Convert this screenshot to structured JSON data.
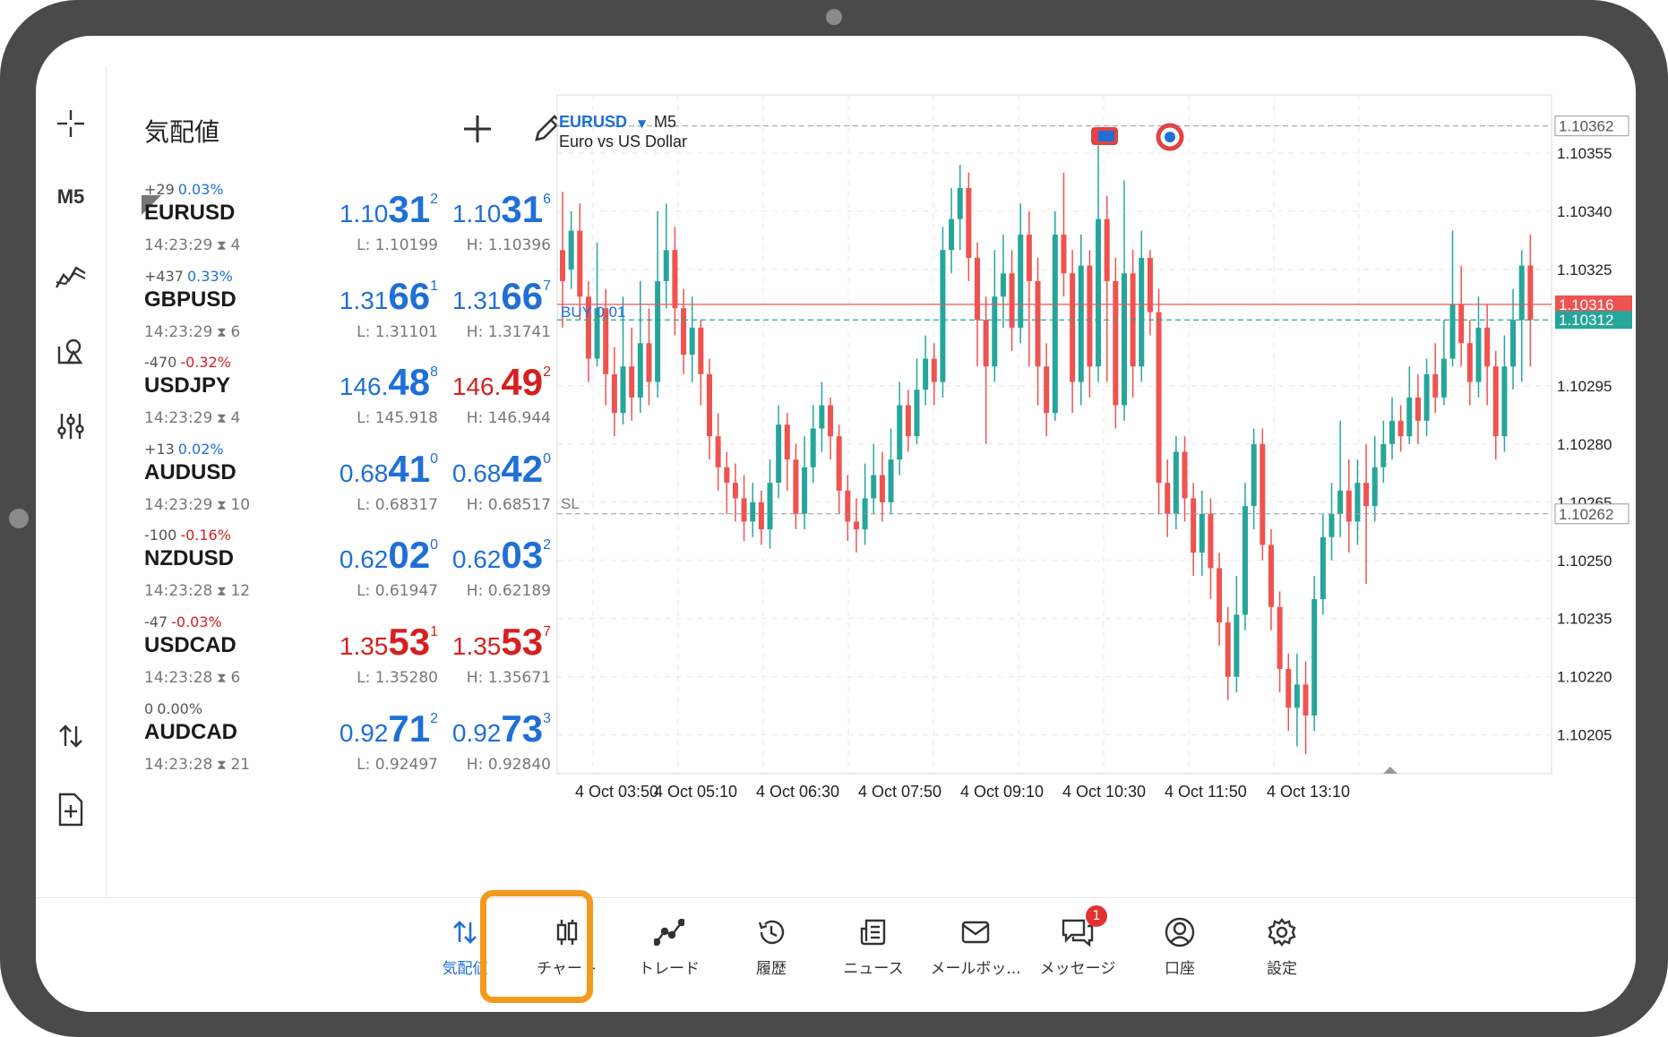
{
  "left_toolbar": {
    "timeframe": "M5",
    "items": [
      "crosshair-icon",
      "timeframe",
      "indicators-icon",
      "objects-icon",
      "settings-sliders-icon",
      "trade-arrows-icon",
      "new-order-icon"
    ]
  },
  "quotes": {
    "title": "気配値",
    "rows": [
      {
        "points": "+29",
        "pct": "0.03%",
        "pct_color": "blue",
        "symbol": "EURUSD",
        "time": "14:23:29",
        "spread": "4",
        "bid_sm": "1.10",
        "bid_big": "31",
        "bid_sup": "2",
        "bid_color": "blue",
        "ask_sm": "1.10",
        "ask_big": "31",
        "ask_sup": "6",
        "ask_color": "blue",
        "low": "L: 1.10199",
        "high": "H: 1.10396"
      },
      {
        "points": "+437",
        "pct": "0.33%",
        "pct_color": "blue",
        "symbol": "GBPUSD",
        "time": "14:23:29",
        "spread": "6",
        "bid_sm": "1.31",
        "bid_big": "66",
        "bid_sup": "1",
        "bid_color": "blue",
        "ask_sm": "1.31",
        "ask_big": "66",
        "ask_sup": "7",
        "ask_color": "blue",
        "low": "L: 1.31101",
        "high": "H: 1.31741"
      },
      {
        "points": "-470",
        "pct": "-0.32%",
        "pct_color": "red",
        "symbol": "USDJPY",
        "time": "14:23:29",
        "spread": "4",
        "bid_sm": "146.",
        "bid_big": "48",
        "bid_sup": "8",
        "bid_color": "blue",
        "ask_sm": "146.",
        "ask_big": "49",
        "ask_sup": "2",
        "ask_color": "red",
        "low": "L: 145.918",
        "high": "H: 146.944"
      },
      {
        "points": "+13",
        "pct": "0.02%",
        "pct_color": "blue",
        "symbol": "AUDUSD",
        "time": "14:23:29",
        "spread": "10",
        "bid_sm": "0.68",
        "bid_big": "41",
        "bid_sup": "0",
        "bid_color": "blue",
        "ask_sm": "0.68",
        "ask_big": "42",
        "ask_sup": "0",
        "ask_color": "blue",
        "low": "L: 0.68317",
        "high": "H: 0.68517"
      },
      {
        "points": "-100",
        "pct": "-0.16%",
        "pct_color": "red",
        "symbol": "NZDUSD",
        "time": "14:23:28",
        "spread": "12",
        "bid_sm": "0.62",
        "bid_big": "02",
        "bid_sup": "0",
        "bid_color": "blue",
        "ask_sm": "0.62",
        "ask_big": "03",
        "ask_sup": "2",
        "ask_color": "blue",
        "low": "L: 0.61947",
        "high": "H: 0.62189"
      },
      {
        "points": "-47",
        "pct": "-0.03%",
        "pct_color": "red",
        "symbol": "USDCAD",
        "time": "14:23:28",
        "spread": "6",
        "bid_sm": "1.35",
        "bid_big": "53",
        "bid_sup": "1",
        "bid_color": "red",
        "ask_sm": "1.35",
        "ask_big": "53",
        "ask_sup": "7",
        "ask_color": "red",
        "low": "L: 1.35280",
        "high": "H: 1.35671"
      },
      {
        "points": "0",
        "pct": "0.00%",
        "pct_color": "gray",
        "symbol": "AUDCAD",
        "time": "14:23:28",
        "spread": "21",
        "bid_sm": "0.92",
        "bid_big": "71",
        "bid_sup": "2",
        "bid_color": "blue",
        "ask_sm": "0.92",
        "ask_big": "73",
        "ask_sup": "3",
        "ask_color": "blue",
        "low": "L: 0.92497",
        "high": "H: 0.92840"
      }
    ]
  },
  "chart": {
    "symbol": "EURUSD",
    "timeframe": "M5",
    "description": "Euro vs US Dollar",
    "buy_label": "BUY 0.01",
    "sl_label": "SL",
    "ask_line_label": "1.10316",
    "bid_line_label": "1.10312",
    "top_dashed_label": "1.10362",
    "sl_line_label": "1.10262",
    "y_ticks": [
      "1.10355",
      "1.10340",
      "1.10325",
      "1.10295",
      "1.10280",
      "1.10265",
      "1.10250",
      "1.10235",
      "1.10220",
      "1.10205"
    ],
    "x_ticks": [
      "4 Oct 03:50",
      "4 Oct 05:10",
      "4 Oct 06:30",
      "4 Oct 07:50",
      "4 Oct 09:10",
      "4 Oct 10:30",
      "4 Oct 11:50",
      "4 Oct 13:10"
    ],
    "colors": {
      "up": "#26a69a",
      "down": "#ef5350",
      "ask_line": "#ef5350",
      "bid_line": "#26a69a"
    }
  },
  "chart_data": {
    "type": "candlestick",
    "ylim": [
      1.10195,
      1.1037
    ],
    "candles": [
      [
        1.1033,
        1.10322,
        1.10345,
        1.1031
      ],
      [
        1.10325,
        1.10335,
        1.1034,
        1.1032
      ],
      [
        1.10335,
        1.10318,
        1.10342,
        1.10312
      ],
      [
        1.10318,
        1.10302,
        1.10322,
        1.10296
      ],
      [
        1.10302,
        1.10315,
        1.10332,
        1.103
      ],
      [
        1.10315,
        1.10298,
        1.1032,
        1.1029
      ],
      [
        1.10298,
        1.10288,
        1.10305,
        1.10282
      ],
      [
        1.10288,
        1.103,
        1.10318,
        1.10285
      ],
      [
        1.103,
        1.10292,
        1.1031,
        1.10286
      ],
      [
        1.10292,
        1.10306,
        1.10322,
        1.10288
      ],
      [
        1.10306,
        1.10296,
        1.10315,
        1.1029
      ],
      [
        1.10296,
        1.10322,
        1.1034,
        1.10292
      ],
      [
        1.10322,
        1.1033,
        1.10342,
        1.10315
      ],
      [
        1.1033,
        1.10315,
        1.10336,
        1.10308
      ],
      [
        1.10315,
        1.10303,
        1.1032,
        1.10298
      ],
      [
        1.10303,
        1.1031,
        1.10318,
        1.10296
      ],
      [
        1.1031,
        1.10298,
        1.10312,
        1.1029
      ],
      [
        1.10298,
        1.10282,
        1.10302,
        1.10276
      ],
      [
        1.10282,
        1.10274,
        1.10288,
        1.10268
      ],
      [
        1.10274,
        1.1027,
        1.10278,
        1.10262
      ],
      [
        1.1027,
        1.10266,
        1.10275,
        1.1026
      ],
      [
        1.10266,
        1.1026,
        1.10272,
        1.10255
      ],
      [
        1.1026,
        1.10265,
        1.1027,
        1.10256
      ],
      [
        1.10265,
        1.10258,
        1.10268,
        1.10254
      ],
      [
        1.10258,
        1.1027,
        1.10276,
        1.10253
      ],
      [
        1.1027,
        1.10285,
        1.1029,
        1.10266
      ],
      [
        1.10285,
        1.10276,
        1.10288,
        1.10268
      ],
      [
        1.10276,
        1.10262,
        1.1028,
        1.10258
      ],
      [
        1.10262,
        1.10274,
        1.10282,
        1.10258
      ],
      [
        1.10274,
        1.10284,
        1.1029,
        1.1027
      ],
      [
        1.10284,
        1.1029,
        1.10296,
        1.10278
      ],
      [
        1.1029,
        1.10282,
        1.10292,
        1.10276
      ],
      [
        1.10282,
        1.10268,
        1.10285,
        1.10262
      ],
      [
        1.10268,
        1.1026,
        1.10272,
        1.10255
      ],
      [
        1.1026,
        1.10258,
        1.10266,
        1.10252
      ],
      [
        1.10258,
        1.10266,
        1.10275,
        1.10254
      ],
      [
        1.10266,
        1.10272,
        1.1028,
        1.10262
      ],
      [
        1.10272,
        1.10265,
        1.10278,
        1.1026
      ],
      [
        1.10265,
        1.10276,
        1.10284,
        1.10262
      ],
      [
        1.10276,
        1.1029,
        1.10296,
        1.10272
      ],
      [
        1.1029,
        1.10282,
        1.10294,
        1.10278
      ],
      [
        1.10282,
        1.10294,
        1.10302,
        1.1028
      ],
      [
        1.10294,
        1.10302,
        1.10308,
        1.1029
      ],
      [
        1.10302,
        1.10296,
        1.10306,
        1.1029
      ],
      [
        1.10296,
        1.1033,
        1.10336,
        1.10292
      ],
      [
        1.1033,
        1.10338,
        1.10346,
        1.10324
      ],
      [
        1.10338,
        1.10346,
        1.10352,
        1.1033
      ],
      [
        1.10346,
        1.10328,
        1.1035,
        1.10322
      ],
      [
        1.10328,
        1.10312,
        1.10332,
        1.103
      ],
      [
        1.10312,
        1.103,
        1.10318,
        1.1028
      ],
      [
        1.103,
        1.10318,
        1.1033,
        1.10296
      ],
      [
        1.10318,
        1.10324,
        1.10334,
        1.1031
      ],
      [
        1.10324,
        1.1031,
        1.1033,
        1.10304
      ],
      [
        1.1031,
        1.10334,
        1.10342,
        1.10306
      ],
      [
        1.10334,
        1.10322,
        1.1034,
        1.103
      ],
      [
        1.10322,
        1.103,
        1.10328,
        1.1029
      ],
      [
        1.103,
        1.10288,
        1.10306,
        1.10282
      ],
      [
        1.10288,
        1.10334,
        1.1034,
        1.10286
      ],
      [
        1.10334,
        1.10324,
        1.1035,
        1.10318
      ],
      [
        1.10324,
        1.10296,
        1.1033,
        1.10288
      ],
      [
        1.10296,
        1.10326,
        1.10334,
        1.1029
      ],
      [
        1.10326,
        1.103,
        1.1033,
        1.10292
      ],
      [
        1.103,
        1.10338,
        1.10357,
        1.10296
      ],
      [
        1.10338,
        1.10322,
        1.10344,
        1.10296
      ],
      [
        1.10322,
        1.1029,
        1.10328,
        1.10284
      ],
      [
        1.1029,
        1.10324,
        1.10348,
        1.10286
      ],
      [
        1.10324,
        1.103,
        1.1033,
        1.10292
      ],
      [
        1.103,
        1.10328,
        1.10335,
        1.10296
      ],
      [
        1.10328,
        1.10314,
        1.1033,
        1.10308
      ],
      [
        1.10314,
        1.1027,
        1.1032,
        1.10262
      ],
      [
        1.1027,
        1.10262,
        1.10276,
        1.10256
      ],
      [
        1.10262,
        1.10278,
        1.10282,
        1.10258
      ],
      [
        1.10278,
        1.10266,
        1.10282,
        1.1026
      ],
      [
        1.10266,
        1.10252,
        1.1027,
        1.10246
      ],
      [
        1.10252,
        1.10262,
        1.10268,
        1.10246
      ],
      [
        1.10262,
        1.10248,
        1.10266,
        1.1024
      ],
      [
        1.10248,
        1.10234,
        1.10252,
        1.10228
      ],
      [
        1.10234,
        1.1022,
        1.10238,
        1.10214
      ],
      [
        1.1022,
        1.10236,
        1.10246,
        1.10216
      ],
      [
        1.10236,
        1.10264,
        1.1027,
        1.10232
      ],
      [
        1.10264,
        1.1028,
        1.10284,
        1.10258
      ],
      [
        1.1028,
        1.10254,
        1.10284,
        1.1025
      ],
      [
        1.10254,
        1.10238,
        1.10258,
        1.10232
      ],
      [
        1.10238,
        1.10222,
        1.10242,
        1.10216
      ],
      [
        1.10222,
        1.10212,
        1.10226,
        1.10206
      ],
      [
        1.10212,
        1.10218,
        1.10226,
        1.10202
      ],
      [
        1.10218,
        1.1021,
        1.10224,
        1.102
      ],
      [
        1.1021,
        1.1024,
        1.10246,
        1.10206
      ],
      [
        1.1024,
        1.10256,
        1.10262,
        1.10236
      ],
      [
        1.10256,
        1.10262,
        1.1027,
        1.1025
      ],
      [
        1.10262,
        1.10268,
        1.10286,
        1.10256
      ],
      [
        1.10268,
        1.1026,
        1.10276,
        1.10252
      ],
      [
        1.1026,
        1.1027,
        1.10276,
        1.10254
      ],
      [
        1.1027,
        1.10264,
        1.1028,
        1.10244
      ],
      [
        1.10264,
        1.10274,
        1.10282,
        1.1026
      ],
      [
        1.10274,
        1.1028,
        1.10286,
        1.1027
      ],
      [
        1.1028,
        1.10286,
        1.10292,
        1.10276
      ],
      [
        1.10286,
        1.10282,
        1.1029,
        1.10278
      ],
      [
        1.10282,
        1.10292,
        1.103,
        1.1028
      ],
      [
        1.10292,
        1.10286,
        1.10298,
        1.1028
      ],
      [
        1.10286,
        1.10298,
        1.10302,
        1.10282
      ],
      [
        1.10298,
        1.10292,
        1.10306,
        1.10288
      ],
      [
        1.10292,
        1.10302,
        1.10312,
        1.1029
      ],
      [
        1.10302,
        1.10316,
        1.10335,
        1.103
      ],
      [
        1.10316,
        1.10306,
        1.10326,
        1.103
      ],
      [
        1.10306,
        1.10296,
        1.10312,
        1.1029
      ],
      [
        1.10296,
        1.1031,
        1.10318,
        1.10292
      ],
      [
        1.1031,
        1.103,
        1.10316,
        1.1029
      ],
      [
        1.103,
        1.10282,
        1.10304,
        1.10276
      ],
      [
        1.10282,
        1.103,
        1.10308,
        1.10278
      ],
      [
        1.103,
        1.10312,
        1.1032,
        1.10294
      ],
      [
        1.10312,
        1.10326,
        1.1033,
        1.10296
      ],
      [
        1.10326,
        1.10312,
        1.10334,
        1.103
      ]
    ]
  },
  "bottom_nav": {
    "items": [
      {
        "label": "気配値",
        "icon": "quotes-arrows-icon",
        "active": true
      },
      {
        "label": "チャート",
        "icon": "chart-candles-icon",
        "active": false
      },
      {
        "label": "トレード",
        "icon": "trade-line-icon",
        "active": false
      },
      {
        "label": "履歴",
        "icon": "history-icon",
        "active": false
      },
      {
        "label": "ニュース",
        "icon": "news-icon",
        "active": false
      },
      {
        "label": "メールボッ...",
        "icon": "mailbox-icon",
        "active": false
      },
      {
        "label": "メッセージ",
        "icon": "messages-icon",
        "active": false,
        "badge": "1"
      },
      {
        "label": "口座",
        "icon": "account-icon",
        "active": false
      },
      {
        "label": "設定",
        "icon": "settings-gear-icon",
        "active": false
      }
    ]
  }
}
